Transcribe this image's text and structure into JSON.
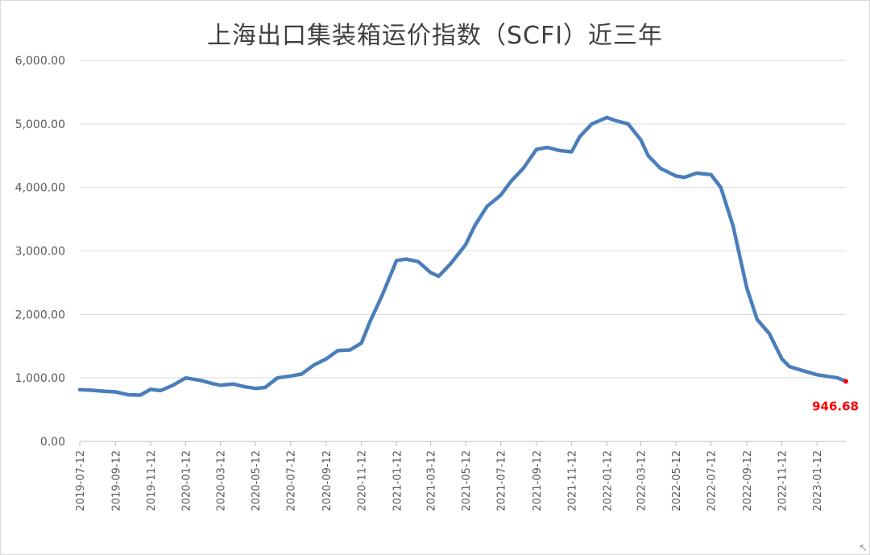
{
  "chart_data": {
    "type": "line",
    "title": "上海出口集装箱运价指数（SCFI）近三年",
    "xlabel": "",
    "ylabel": "",
    "ylim": [
      0,
      6000
    ],
    "yticks": [
      "0.00",
      "1,000.00",
      "2,000.00",
      "3,000.00",
      "4,000.00",
      "5,000.00",
      "6,000.00"
    ],
    "ytick_values": [
      0,
      1000,
      2000,
      3000,
      4000,
      5000,
      6000
    ],
    "xticks": [
      "2019-07-12",
      "2019-09-12",
      "2019-11-12",
      "2020-01-12",
      "2020-03-12",
      "2020-05-12",
      "2020-07-12",
      "2020-09-12",
      "2020-11-12",
      "2021-01-12",
      "2021-03-12",
      "2021-05-12",
      "2021-07-12",
      "2021-09-12",
      "2021-11-12",
      "2022-01-12",
      "2022-03-12",
      "2022-05-12",
      "2022-07-12",
      "2022-09-12",
      "2022-11-12",
      "2023-01-12"
    ],
    "grid": true,
    "legend": "none",
    "line_color": "#4a7ebb",
    "last_point_color": "#ff0000",
    "last_value_label": "946.68",
    "series": [
      {
        "x": [
          "2019-07-12",
          "2019-08-02",
          "2019-08-23",
          "2019-09-12",
          "2019-10-04",
          "2019-10-25",
          "2019-11-12",
          "2019-11-29",
          "2019-12-20",
          "2020-01-12",
          "2020-02-07",
          "2020-02-28",
          "2020-03-12",
          "2020-04-03",
          "2020-04-24",
          "2020-05-12",
          "2020-05-29",
          "2020-06-19",
          "2020-07-12",
          "2020-07-31",
          "2020-08-21",
          "2020-09-12",
          "2020-10-02",
          "2020-10-23",
          "2020-11-12",
          "2020-11-27",
          "2020-12-18",
          "2021-01-12",
          "2021-01-29",
          "2021-02-19",
          "2021-03-12",
          "2021-03-26",
          "2021-04-16",
          "2021-05-12",
          "2021-05-28",
          "2021-06-18",
          "2021-07-12",
          "2021-07-30",
          "2021-08-20",
          "2021-09-12",
          "2021-10-01",
          "2021-10-22",
          "2021-11-12",
          "2021-11-26",
          "2021-12-17",
          "2022-01-12",
          "2022-01-28",
          "2022-02-18",
          "2022-03-12",
          "2022-03-25",
          "2022-04-15",
          "2022-05-12",
          "2022-05-27",
          "2022-06-17",
          "2022-07-12",
          "2022-07-29",
          "2022-08-19",
          "2022-09-12",
          "2022-09-30",
          "2022-10-21",
          "2022-11-12",
          "2022-11-25",
          "2022-12-16",
          "2023-01-12",
          "2023-01-27",
          "2023-02-17",
          "2023-03-03"
        ],
        "values": [
          815,
          805,
          790,
          780,
          735,
          730,
          820,
          800,
          880,
          1000,
          960,
          910,
          885,
          905,
          860,
          835,
          850,
          1000,
          1030,
          1060,
          1200,
          1300,
          1430,
          1440,
          1550,
          1890,
          2300,
          2850,
          2870,
          2830,
          2660,
          2600,
          2800,
          3100,
          3400,
          3700,
          3880,
          4100,
          4300,
          4600,
          4630,
          4580,
          4560,
          4800,
          5000,
          5100,
          5050,
          5000,
          4750,
          4500,
          4300,
          4180,
          4160,
          4225,
          4200,
          4000,
          3400,
          2420,
          1920,
          1700,
          1300,
          1180,
          1120,
          1050,
          1030,
          1000,
          946.68
        ]
      }
    ]
  },
  "corner_glyph": "↖"
}
